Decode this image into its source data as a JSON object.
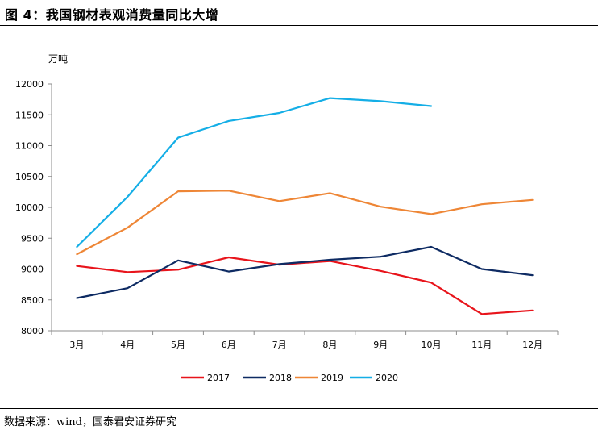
{
  "header": {
    "title": "图 4：我国钢材表观消费量同比大增"
  },
  "footer": {
    "source": "数据来源：wind，国泰君安证券研究"
  },
  "chart_data": {
    "type": "line",
    "unit_label": "万吨",
    "categories": [
      "3月",
      "4月",
      "5月",
      "6月",
      "7月",
      "8月",
      "9月",
      "10月",
      "11月",
      "12月"
    ],
    "ylim": [
      8000,
      12000
    ],
    "yticks": [
      8000,
      8500,
      9000,
      9500,
      10000,
      10500,
      11000,
      11500,
      12000
    ],
    "grid": false,
    "legend_position": "bottom",
    "series": [
      {
        "name": "2017",
        "color": "#e8141b",
        "values": [
          9050,
          8950,
          8990,
          9190,
          9070,
          9130,
          8970,
          8780,
          8270,
          8330
        ]
      },
      {
        "name": "2018",
        "color": "#0e2b63",
        "values": [
          8530,
          8690,
          9140,
          8960,
          9080,
          9150,
          9200,
          9360,
          9000,
          8900
        ]
      },
      {
        "name": "2019",
        "color": "#ee8636",
        "values": [
          9240,
          9670,
          10260,
          10270,
          10100,
          10230,
          10010,
          9890,
          10050,
          10120
        ]
      },
      {
        "name": "2020",
        "color": "#14aee6",
        "values": [
          9360,
          10170,
          11130,
          11400,
          11530,
          11770,
          11720,
          11640,
          null,
          null
        ]
      }
    ]
  }
}
